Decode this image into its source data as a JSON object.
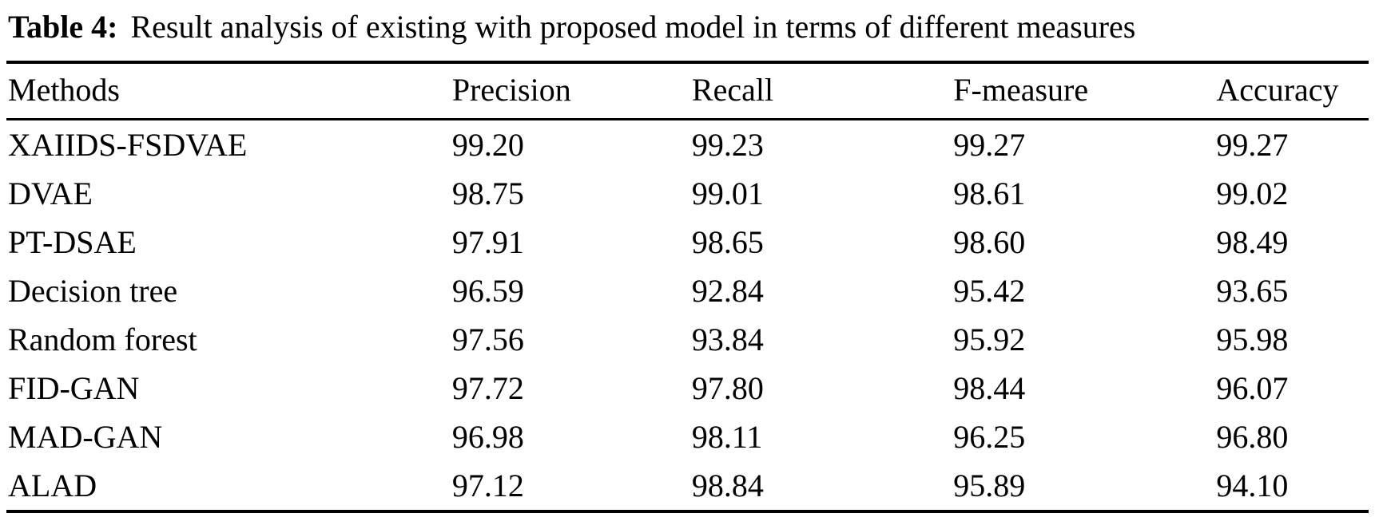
{
  "caption": {
    "label": "Table 4:",
    "text": "Result analysis of existing with proposed model in terms of different measures"
  },
  "table": {
    "columns": [
      "Methods",
      "Precision",
      "Recall",
      "F-measure",
      "Accuracy"
    ],
    "rows": [
      [
        "XAIIDS-FSDVAE",
        "99.20",
        "99.23",
        "99.27",
        "99.27"
      ],
      [
        "DVAE",
        "98.75",
        "99.01",
        "98.61",
        "99.02"
      ],
      [
        "PT-DSAE",
        "97.91",
        "98.65",
        "98.60",
        "98.49"
      ],
      [
        "Decision tree",
        "96.59",
        "92.84",
        "95.42",
        "93.65"
      ],
      [
        "Random forest",
        "97.56",
        "93.84",
        "95.92",
        "95.98"
      ],
      [
        "FID-GAN",
        "97.72",
        "97.80",
        "98.44",
        "96.07"
      ],
      [
        "MAD-GAN",
        "96.98",
        "98.11",
        "96.25",
        "96.80"
      ],
      [
        "ALAD",
        "97.12",
        "98.84",
        "95.89",
        "94.10"
      ]
    ]
  },
  "chart_data": {
    "type": "table",
    "title": "Table 4: Result analysis of existing with proposed model in terms of different measures",
    "columns": [
      "Methods",
      "Precision",
      "Recall",
      "F-measure",
      "Accuracy"
    ],
    "rows": [
      {
        "method": "XAIIDS-FSDVAE",
        "precision": 99.2,
        "recall": 99.23,
        "f_measure": 99.27,
        "accuracy": 99.27
      },
      {
        "method": "DVAE",
        "precision": 98.75,
        "recall": 99.01,
        "f_measure": 98.61,
        "accuracy": 99.02
      },
      {
        "method": "PT-DSAE",
        "precision": 97.91,
        "recall": 98.65,
        "f_measure": 98.6,
        "accuracy": 98.49
      },
      {
        "method": "Decision tree",
        "precision": 96.59,
        "recall": 92.84,
        "f_measure": 95.42,
        "accuracy": 93.65
      },
      {
        "method": "Random forest",
        "precision": 97.56,
        "recall": 93.84,
        "f_measure": 95.92,
        "accuracy": 95.98
      },
      {
        "method": "FID-GAN",
        "precision": 97.72,
        "recall": 97.8,
        "f_measure": 98.44,
        "accuracy": 96.07
      },
      {
        "method": "MAD-GAN",
        "precision": 96.98,
        "recall": 98.11,
        "f_measure": 96.25,
        "accuracy": 96.8
      },
      {
        "method": "ALAD",
        "precision": 97.12,
        "recall": 98.84,
        "f_measure": 95.89,
        "accuracy": 94.1
      }
    ]
  }
}
